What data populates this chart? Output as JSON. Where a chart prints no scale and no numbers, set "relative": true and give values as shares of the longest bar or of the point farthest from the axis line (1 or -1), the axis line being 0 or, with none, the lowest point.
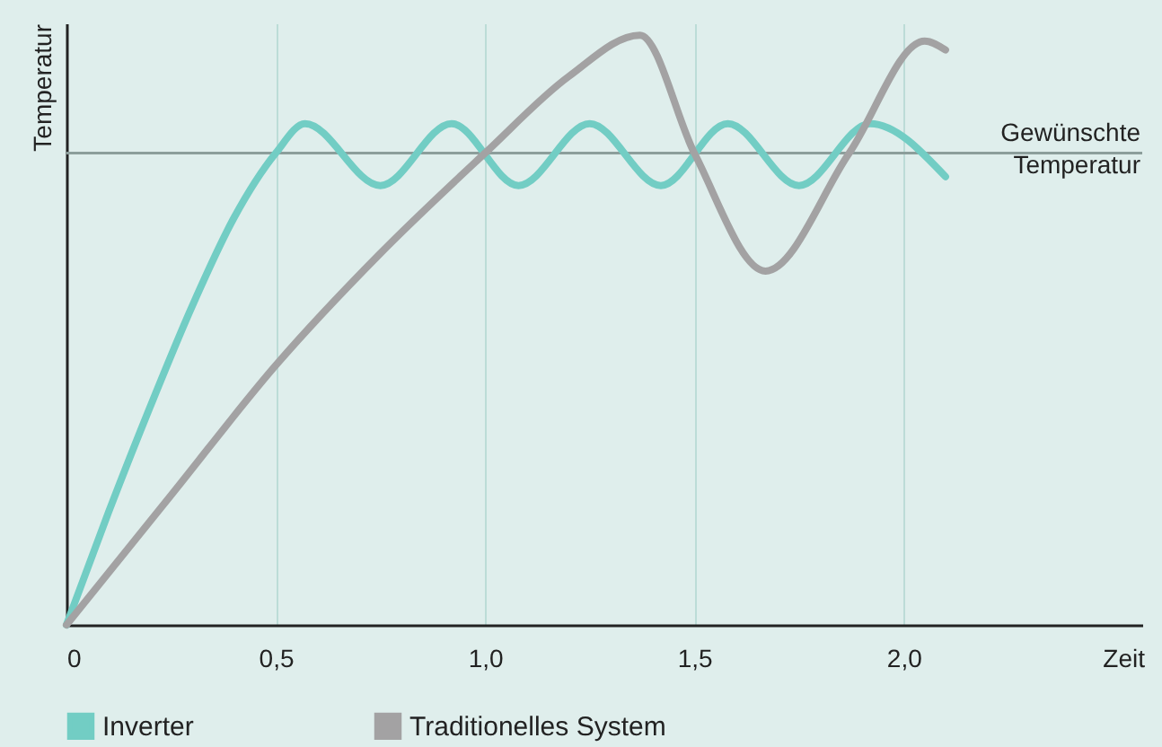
{
  "chart_data": {
    "type": "line",
    "relative": true,
    "xlabel": "Zeit",
    "ylabel": "Temperatur",
    "xlim": [
      0,
      2.57
    ],
    "xticks": [
      0,
      {
        "value": 0.5,
        "label": "0,5"
      },
      {
        "value": 1,
        "label": "1,0"
      },
      {
        "value": 1.5,
        "label": "1,5"
      },
      {
        "value": 2,
        "label": "2,0"
      }
    ],
    "grid": "x",
    "legend": "bottom",
    "marker": "none",
    "line_style": "solid",
    "ref_lines": [
      {
        "axis": "y",
        "value": 0.8,
        "label": "Gewünschte Temperatur",
        "color": "#8c9e9b"
      }
    ],
    "series": [
      {
        "name": "Inverter",
        "color": "#72cdc4",
        "x": [
          0,
          0.1,
          0.2,
          0.3,
          0.4,
          0.5,
          0.57,
          0.75,
          0.92,
          1.08,
          1.25,
          1.42,
          1.58,
          1.75,
          1.92,
          2.1
        ],
        "values": [
          0,
          0.19,
          0.37,
          0.54,
          0.69,
          0.8,
          0.85,
          0.745,
          0.85,
          0.745,
          0.85,
          0.745,
          0.85,
          0.745,
          0.85,
          0.76
        ]
      },
      {
        "name": "Traditionelles System",
        "color": "#a3a2a3",
        "x": [
          0,
          0.25,
          0.5,
          0.75,
          1.0,
          1.2,
          1.37,
          1.5,
          1.67,
          1.87,
          2.05,
          2.1
        ],
        "values": [
          0,
          0.22,
          0.44,
          0.63,
          0.8,
          0.93,
          1.0,
          0.8,
          0.6,
          0.8,
          0.99,
          0.975
        ]
      }
    ]
  }
}
